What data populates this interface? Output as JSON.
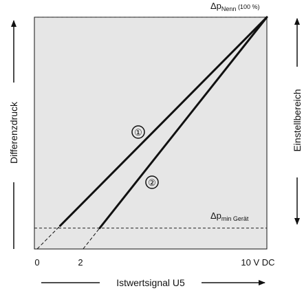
{
  "chart_data": {
    "type": "line",
    "xlabel": "Istwertsignal U5",
    "ylabel": "Differenzdruck",
    "right_label": "Einstellbereich",
    "x_ticks": [
      {
        "value": 0,
        "label": "0"
      },
      {
        "value": 2,
        "label": "2"
      },
      {
        "value": 10,
        "label": "10 V DC"
      }
    ],
    "xlim": [
      0,
      10
    ],
    "ylim": [
      0,
      100
    ],
    "reference_lines": [
      {
        "id": "nenn",
        "y": 100,
        "label_main": "Δp",
        "label_sub": "Nenn",
        "label_suffix": " (100 %)"
      },
      {
        "id": "min",
        "y": 9,
        "label_main": "Δp",
        "label_sub": "min Gerät",
        "label_suffix": ""
      }
    ],
    "series": [
      {
        "name": "①",
        "points": [
          [
            0,
            0
          ],
          [
            10,
            100
          ]
        ],
        "solid_from_x": 1.0
      },
      {
        "name": "②",
        "points": [
          [
            2,
            0
          ],
          [
            10,
            100
          ]
        ],
        "solid_from_x": 2.72
      }
    ],
    "grid": false,
    "legend": "none"
  },
  "colors": {
    "plot_background": "#e6e6e6",
    "line": "#111111"
  }
}
